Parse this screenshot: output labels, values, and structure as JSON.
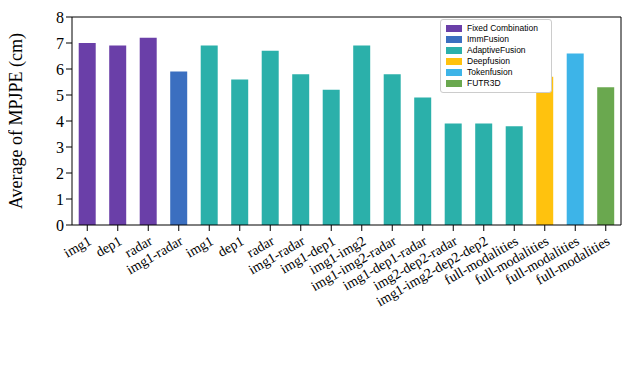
{
  "chart_data": {
    "type": "bar",
    "y_label": "Average of MPJPE (cm)",
    "categories": [
      "img1",
      "dep1",
      "radar",
      "img1-radar",
      "img1",
      "dep1",
      "radar",
      "img1-radar",
      "img1-dep1",
      "img1-img2",
      "img1-img2-radar",
      "img1-dep1-radar",
      "img2-dep2-radar",
      "img1-img2-dep2-dep2",
      "full-modalities",
      "full-modalities",
      "full-modalities",
      "full-modalities"
    ],
    "series": [
      {
        "name": "Fixed Combination",
        "color": "#6a3fa8",
        "values": [
          7.0,
          6.9,
          7.2,
          null,
          null,
          null,
          null,
          null,
          null,
          null,
          null,
          null,
          null,
          null,
          null,
          null,
          null,
          null
        ]
      },
      {
        "name": "ImmFusion",
        "color": "#3b6fc0",
        "values": [
          null,
          null,
          null,
          5.9,
          null,
          null,
          null,
          null,
          null,
          null,
          null,
          null,
          null,
          null,
          null,
          null,
          null,
          null
        ]
      },
      {
        "name": "AdaptiveFusion",
        "color": "#2bb0aa",
        "values": [
          null,
          null,
          null,
          null,
          6.9,
          5.6,
          6.7,
          5.8,
          5.2,
          6.9,
          5.8,
          4.9,
          3.9,
          3.9,
          3.8,
          null,
          null,
          null
        ]
      },
      {
        "name": "Deepfusion",
        "color": "#ffc20e",
        "values": [
          null,
          null,
          null,
          null,
          null,
          null,
          null,
          null,
          null,
          null,
          null,
          null,
          null,
          null,
          null,
          5.7,
          null,
          null
        ]
      },
      {
        "name": "Tokenfusion",
        "color": "#3db4e8",
        "values": [
          null,
          null,
          null,
          null,
          null,
          null,
          null,
          null,
          null,
          null,
          null,
          null,
          null,
          null,
          null,
          null,
          6.6,
          null
        ]
      },
      {
        "name": "FUTR3D",
        "color": "#6aa84f",
        "values": [
          null,
          null,
          null,
          null,
          null,
          null,
          null,
          null,
          null,
          null,
          null,
          null,
          null,
          null,
          null,
          null,
          null,
          5.3
        ]
      }
    ],
    "ylim": [
      0,
      8
    ],
    "yticks": [
      0,
      1,
      2,
      3,
      4,
      5,
      6,
      7,
      8
    ],
    "stacked": true,
    "legend": "upper right",
    "grid": false
  }
}
